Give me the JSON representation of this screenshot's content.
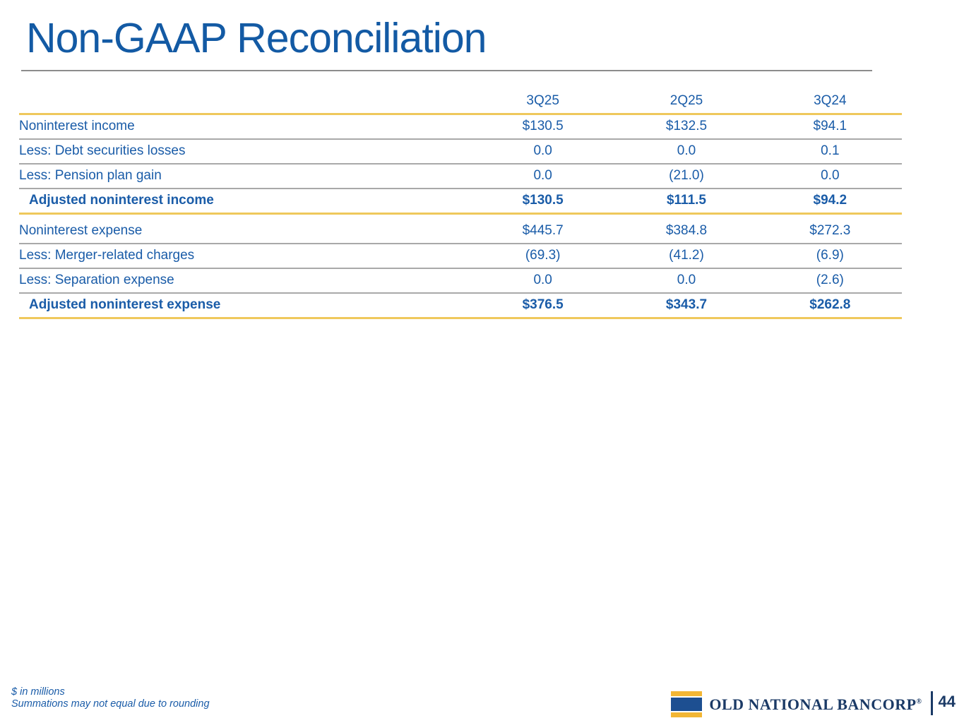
{
  "slide": {
    "title": "Non-GAAP Reconciliation"
  },
  "table": {
    "column_headers": [
      "3Q25",
      "2Q25",
      "3Q24"
    ],
    "income_rows": [
      {
        "label": "Noninterest income",
        "values": [
          "$130.5",
          "$132.5",
          "$94.1"
        ]
      },
      {
        "label": "Less: Debt securities losses",
        "values": [
          "0.0",
          "0.0",
          "0.1"
        ]
      },
      {
        "label": "Less: Pension plan gain",
        "values": [
          "0.0",
          "(21.0)",
          "0.0"
        ]
      },
      {
        "label": "Adjusted noninterest income",
        "values": [
          "$130.5",
          "$111.5",
          "$94.2"
        ]
      }
    ],
    "expense_rows": [
      {
        "label": "Noninterest expense",
        "values": [
          "$445.7",
          "$384.8",
          "$272.3"
        ]
      },
      {
        "label": "Less: Merger-related charges",
        "values": [
          "(69.3)",
          "(41.2)",
          "(6.9)"
        ]
      },
      {
        "label": "Less: Separation expense",
        "values": [
          "0.0",
          "0.0",
          "(2.6)"
        ]
      },
      {
        "label": "Adjusted noninterest expense",
        "values": [
          "$376.5",
          "$343.7",
          "$262.8"
        ]
      }
    ]
  },
  "footnotes": {
    "line1": "$ in millions",
    "line2": "Summations may not equal due to rounding"
  },
  "footer": {
    "brand": "OLD NATIONAL BANCORP",
    "registered_mark": "®",
    "page_number": "44"
  },
  "colors": {
    "title_blue": "#135AA4",
    "table_text_blue": "#1A5CA8",
    "brand_navy": "#1B3A66",
    "logo_square_blue": "#1D4F91",
    "gold_rule": "#EFC85C",
    "logo_gold": "#F2B634",
    "gray_rule": "#A9A9A9",
    "title_rule_gray": "#8C8C8C"
  }
}
